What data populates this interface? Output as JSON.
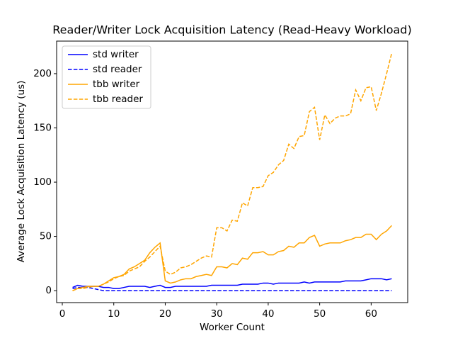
{
  "chart_data": {
    "type": "line",
    "title": "Reader/Writer Lock Acquisition Latency (Read-Heavy Workload)",
    "x_label": "Worker Count",
    "y_label": "Average Lock Acquisition Latency (us)",
    "x": [
      2,
      3,
      4,
      5,
      6,
      7,
      8,
      9,
      10,
      11,
      12,
      13,
      14,
      15,
      16,
      17,
      18,
      19,
      20,
      21,
      22,
      23,
      24,
      25,
      26,
      27,
      28,
      29,
      30,
      31,
      32,
      33,
      34,
      35,
      36,
      37,
      38,
      39,
      40,
      41,
      42,
      43,
      44,
      45,
      46,
      47,
      48,
      49,
      50,
      51,
      52,
      53,
      54,
      55,
      56,
      57,
      58,
      59,
      60,
      61,
      62,
      63,
      64
    ],
    "series": [
      {
        "name": "std writer",
        "color": "#0000ff",
        "linestyle": "solid",
        "values": [
          3,
          5,
          4,
          4,
          4,
          4,
          3,
          3,
          2,
          2,
          3,
          4,
          4,
          4,
          4,
          3,
          4,
          5,
          3,
          3,
          4,
          4,
          4,
          4,
          4,
          4,
          4,
          5,
          5,
          5,
          5,
          5,
          5,
          6,
          6,
          6,
          6,
          7,
          7,
          6,
          7,
          7,
          7,
          7,
          7,
          8,
          7,
          8,
          8,
          8,
          8,
          8,
          8,
          9,
          9,
          9,
          9,
          10,
          11,
          11,
          11,
          10,
          11
        ]
      },
      {
        "name": "std reader",
        "color": "#0000ff",
        "linestyle": "dashed",
        "values": [
          2,
          3,
          3,
          3,
          2,
          1,
          0,
          0,
          0,
          0,
          0,
          0,
          0,
          0,
          0,
          0,
          0,
          0,
          0,
          0,
          0,
          0,
          0,
          0,
          0,
          0,
          0,
          0,
          0,
          0,
          0,
          0,
          0,
          0,
          0,
          0,
          0,
          0,
          0,
          0,
          0,
          0,
          0,
          0,
          0,
          0,
          0,
          0,
          0,
          0,
          0,
          0,
          0,
          0,
          0,
          0,
          0,
          0,
          0,
          0,
          0,
          0,
          0
        ]
      },
      {
        "name": "tbb writer",
        "color": "#ffa500",
        "linestyle": "solid",
        "values": [
          0,
          2,
          3,
          4,
          4,
          4,
          6,
          9,
          12,
          13,
          15,
          20,
          22,
          25,
          28,
          35,
          40,
          44,
          9,
          7,
          8,
          10,
          11,
          11,
          13,
          14,
          15,
          14,
          22,
          22,
          21,
          25,
          24,
          30,
          29,
          35,
          35,
          36,
          33,
          33,
          36,
          37,
          41,
          40,
          44,
          44,
          49,
          51,
          41,
          43,
          44,
          44,
          44,
          46,
          47,
          49,
          49,
          52,
          52,
          47,
          52,
          55,
          60
        ]
      },
      {
        "name": "tbb reader",
        "color": "#ffa500",
        "linestyle": "dashed",
        "values": [
          0,
          2,
          2,
          3,
          4,
          4,
          6,
          8,
          11,
          13,
          14,
          18,
          20,
          22,
          27,
          31,
          36,
          41,
          18,
          15,
          17,
          21,
          22,
          24,
          27,
          30,
          32,
          31,
          58,
          58,
          55,
          65,
          64,
          81,
          78,
          95,
          95,
          96,
          106,
          109,
          116,
          120,
          135,
          131,
          142,
          143,
          165,
          169,
          139,
          162,
          154,
          159,
          161,
          161,
          163,
          185,
          175,
          187,
          188,
          166,
          182,
          200,
          219
        ]
      }
    ],
    "xlim": [
      -1.1,
      67.1
    ],
    "xticks": [
      0,
      10,
      20,
      30,
      40,
      50,
      60
    ],
    "ylim": [
      -11,
      230
    ],
    "yticks": [
      0,
      50,
      100,
      150,
      200
    ],
    "legend": "upper left"
  }
}
